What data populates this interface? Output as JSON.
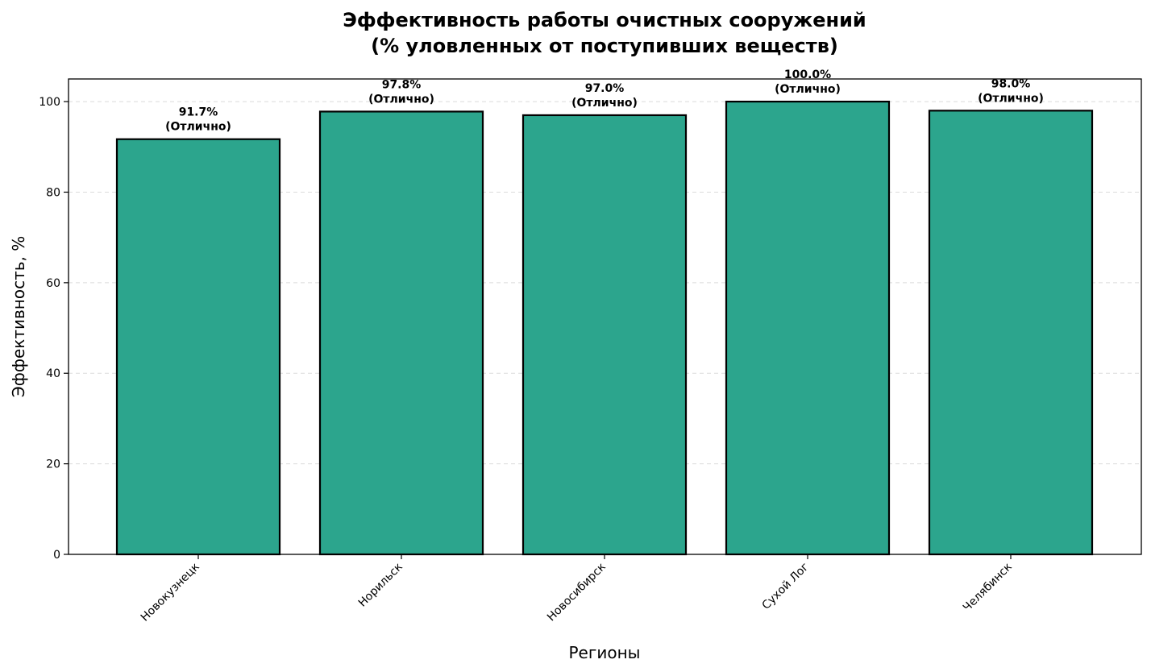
{
  "chart_data": {
    "type": "bar",
    "title": "Эффективность работы очистных сооружений",
    "subtitle": "(% уловленных от поступивших веществ)",
    "xlabel": "Регионы",
    "ylabel": "Эффективность, %",
    "categories": [
      "Новокузнецк",
      "Норильск",
      "Новосибирск",
      "Сухой Лог",
      "Челябинск"
    ],
    "values": [
      91.7,
      97.8,
      97.0,
      100.0,
      98.0
    ],
    "value_labels": [
      "91.7%",
      "97.8%",
      "97.0%",
      "100.0%",
      "98.0%"
    ],
    "rating_labels": [
      "(Отлично)",
      "(Отлично)",
      "(Отлично)",
      "(Отлично)",
      "(Отлично)"
    ],
    "ylim": [
      0,
      105
    ],
    "yticks": [
      0,
      20,
      40,
      60,
      80,
      100
    ],
    "grid": "y-dashed",
    "bar_color": "#2ca58d",
    "bar_edge_color": "#000000"
  }
}
